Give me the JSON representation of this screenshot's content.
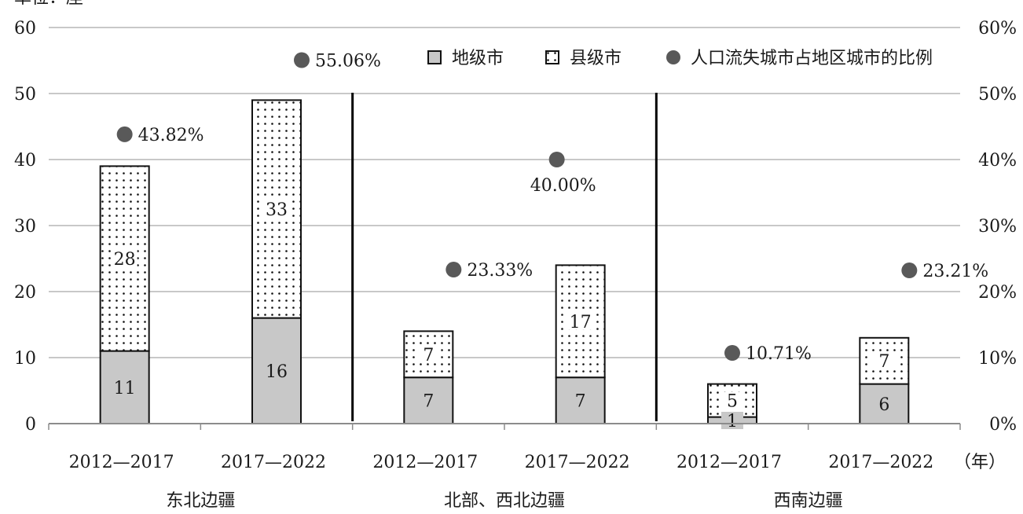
{
  "chart_data": {
    "type": "bar",
    "unit_label": "单位：座",
    "x_unit": "（年）",
    "groups": [
      "东北边疆",
      "北部、西北边疆",
      "西南边疆"
    ],
    "categories": [
      "2012—2017",
      "2017—2022",
      "2012—2017",
      "2017—2022",
      "2012—2017",
      "2017—2022"
    ],
    "category_group": [
      0,
      0,
      1,
      1,
      2,
      2
    ],
    "series": [
      {
        "name": "地级市",
        "values": [
          11,
          16,
          7,
          7,
          1,
          6
        ],
        "labels": [
          "11",
          "16",
          "7",
          "7",
          "1",
          "6"
        ],
        "color": "#c8c8c8",
        "pattern": "solid"
      },
      {
        "name": "县级市",
        "values": [
          28,
          33,
          7,
          17,
          5,
          7
        ],
        "labels": [
          "28",
          "33",
          "7",
          "17",
          "5",
          "7"
        ],
        "color": "#ffffff",
        "pattern": "dots"
      },
      {
        "name": "人口流失城市占地区城市的比例",
        "values": [
          43.82,
          55.06,
          23.33,
          40.0,
          10.71,
          23.21
        ],
        "labels": [
          "43.82%",
          "55.06%",
          "23.33%",
          "40.00%",
          "10.71%",
          "23.21%"
        ],
        "color": "#595959",
        "type": "scatter",
        "axis": "right"
      }
    ],
    "left_axis": {
      "ylim": [
        0,
        60
      ],
      "ticks": [
        "0",
        "10",
        "20",
        "30",
        "40",
        "50",
        "60"
      ]
    },
    "right_axis": {
      "ylim": [
        0,
        60
      ],
      "ticks": [
        "0%",
        "10%",
        "20%",
        "30%",
        "40%",
        "50%",
        "60%"
      ]
    },
    "grid": true,
    "legend_position": "top-right"
  }
}
